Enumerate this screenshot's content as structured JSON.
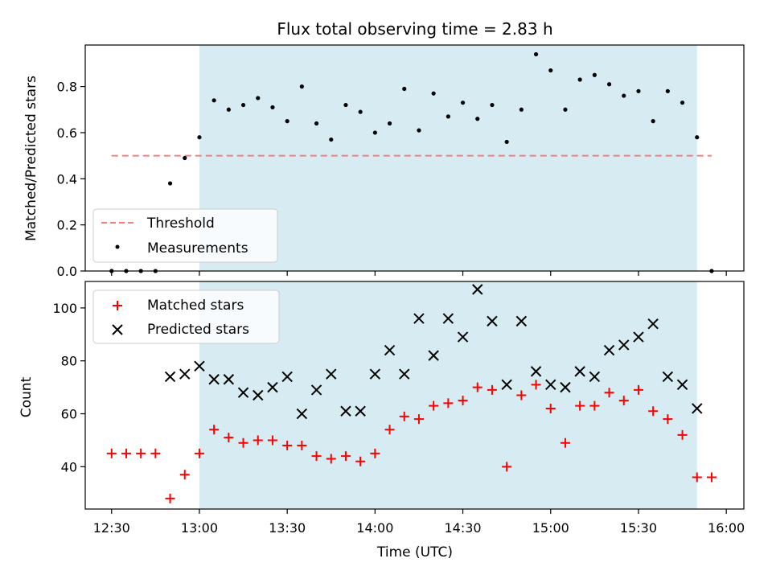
{
  "chart_data": [
    {
      "type": "scatter",
      "title": "Flux total observing time = 2.83 h",
      "ylabel": "Matched/Predicted stars",
      "xlabel": "",
      "ylim": [
        0,
        0.98
      ],
      "yticks": [
        0.0,
        0.2,
        0.4,
        0.6,
        0.8
      ],
      "ytick_labels": [
        "0.0",
        "0.2",
        "0.4",
        "0.6",
        "0.8"
      ],
      "xlim": [
        "12:21",
        "16:06"
      ],
      "shaded_span": [
        "13:00",
        "15:50"
      ],
      "shade_color": "#add8e6",
      "legend": {
        "placement": "lower-left",
        "entries": [
          "Threshold",
          "Measurements"
        ]
      },
      "threshold": {
        "name": "Threshold",
        "x": [
          "12:30",
          "15:55"
        ],
        "y": 0.5,
        "color": "#f08080"
      },
      "series": [
        {
          "name": "Measurements",
          "color": "#000000",
          "x": [
            "12:30",
            "12:35",
            "12:40",
            "12:45",
            "12:50",
            "12:55",
            "13:00",
            "13:05",
            "13:10",
            "13:15",
            "13:20",
            "13:25",
            "13:30",
            "13:35",
            "13:40",
            "13:45",
            "13:50",
            "13:55",
            "14:00",
            "14:05",
            "14:10",
            "14:15",
            "14:20",
            "14:25",
            "14:30",
            "14:35",
            "14:40",
            "14:45",
            "14:50",
            "14:55",
            "15:00",
            "15:05",
            "15:10",
            "15:15",
            "15:20",
            "15:25",
            "15:30",
            "15:35",
            "15:40",
            "15:45",
            "15:50",
            "15:55"
          ],
          "y": [
            0.0,
            0.0,
            0.0,
            0.0,
            0.38,
            0.49,
            0.58,
            0.74,
            0.7,
            0.72,
            0.75,
            0.71,
            0.65,
            0.8,
            0.64,
            0.57,
            0.72,
            0.69,
            0.6,
            0.64,
            0.79,
            0.61,
            0.77,
            0.67,
            0.73,
            0.66,
            0.72,
            0.56,
            0.7,
            0.94,
            0.87,
            0.7,
            0.83,
            0.85,
            0.81,
            0.76,
            0.78,
            0.65,
            0.78,
            0.73,
            0.58,
            0.0
          ]
        }
      ]
    },
    {
      "type": "scatter",
      "title": "",
      "ylabel": "Count",
      "xlabel": "Time (UTC)",
      "ylim": [
        24,
        110
      ],
      "yticks": [
        40,
        60,
        80,
        100
      ],
      "ytick_labels": [
        "40",
        "60",
        "80",
        "100"
      ],
      "xlim": [
        "12:21",
        "16:06"
      ],
      "xticks": [
        "12:30",
        "13:00",
        "13:30",
        "14:00",
        "14:30",
        "15:00",
        "15:30",
        "16:00"
      ],
      "xtick_labels": [
        "12:30",
        "13:00",
        "13:30",
        "14:00",
        "14:30",
        "15:00",
        "15:30",
        "16:00"
      ],
      "shaded_span": [
        "13:00",
        "15:50"
      ],
      "shade_color": "#add8e6",
      "legend": {
        "placement": "upper-left",
        "entries": [
          "Matched stars",
          "Predicted stars"
        ]
      },
      "series": [
        {
          "name": "Matched stars",
          "marker": "plus",
          "color": "#ff0000",
          "x": [
            "12:30",
            "12:35",
            "12:40",
            "12:45",
            "12:50",
            "12:55",
            "13:00",
            "13:05",
            "13:10",
            "13:15",
            "13:20",
            "13:25",
            "13:30",
            "13:35",
            "13:40",
            "13:45",
            "13:50",
            "13:55",
            "14:00",
            "14:05",
            "14:10",
            "14:15",
            "14:20",
            "14:25",
            "14:30",
            "14:35",
            "14:40",
            "14:45",
            "14:50",
            "14:55",
            "15:00",
            "15:05",
            "15:10",
            "15:15",
            "15:20",
            "15:25",
            "15:30",
            "15:35",
            "15:40",
            "15:45",
            "15:50",
            "15:55"
          ],
          "y": [
            45,
            45,
            45,
            45,
            28,
            37,
            45,
            54,
            51,
            49,
            50,
            50,
            48,
            48,
            44,
            43,
            44,
            42,
            45,
            54,
            59,
            58,
            63,
            64,
            65,
            70,
            69,
            40,
            67,
            71,
            62,
            49,
            63,
            63,
            68,
            65,
            69,
            61,
            58,
            52,
            36,
            36
          ]
        },
        {
          "name": "Predicted stars",
          "marker": "x",
          "color": "#000000",
          "x": [
            "12:50",
            "12:55",
            "13:00",
            "13:05",
            "13:10",
            "13:15",
            "13:20",
            "13:25",
            "13:30",
            "13:35",
            "13:40",
            "13:45",
            "13:50",
            "13:55",
            "14:00",
            "14:05",
            "14:10",
            "14:15",
            "14:20",
            "14:25",
            "14:30",
            "14:35",
            "14:40",
            "14:45",
            "14:50",
            "14:55",
            "15:00",
            "15:05",
            "15:10",
            "15:15",
            "15:20",
            "15:25",
            "15:30",
            "15:35",
            "15:40",
            "15:45",
            "15:50"
          ],
          "y": [
            74,
            75,
            78,
            73,
            73,
            68,
            67,
            70,
            74,
            60,
            69,
            75,
            61,
            61,
            75,
            84,
            75,
            96,
            82,
            96,
            89,
            107,
            95,
            71,
            95,
            76,
            71,
            70,
            76,
            74,
            84,
            86,
            89,
            94,
            74,
            71,
            62
          ]
        }
      ]
    }
  ]
}
